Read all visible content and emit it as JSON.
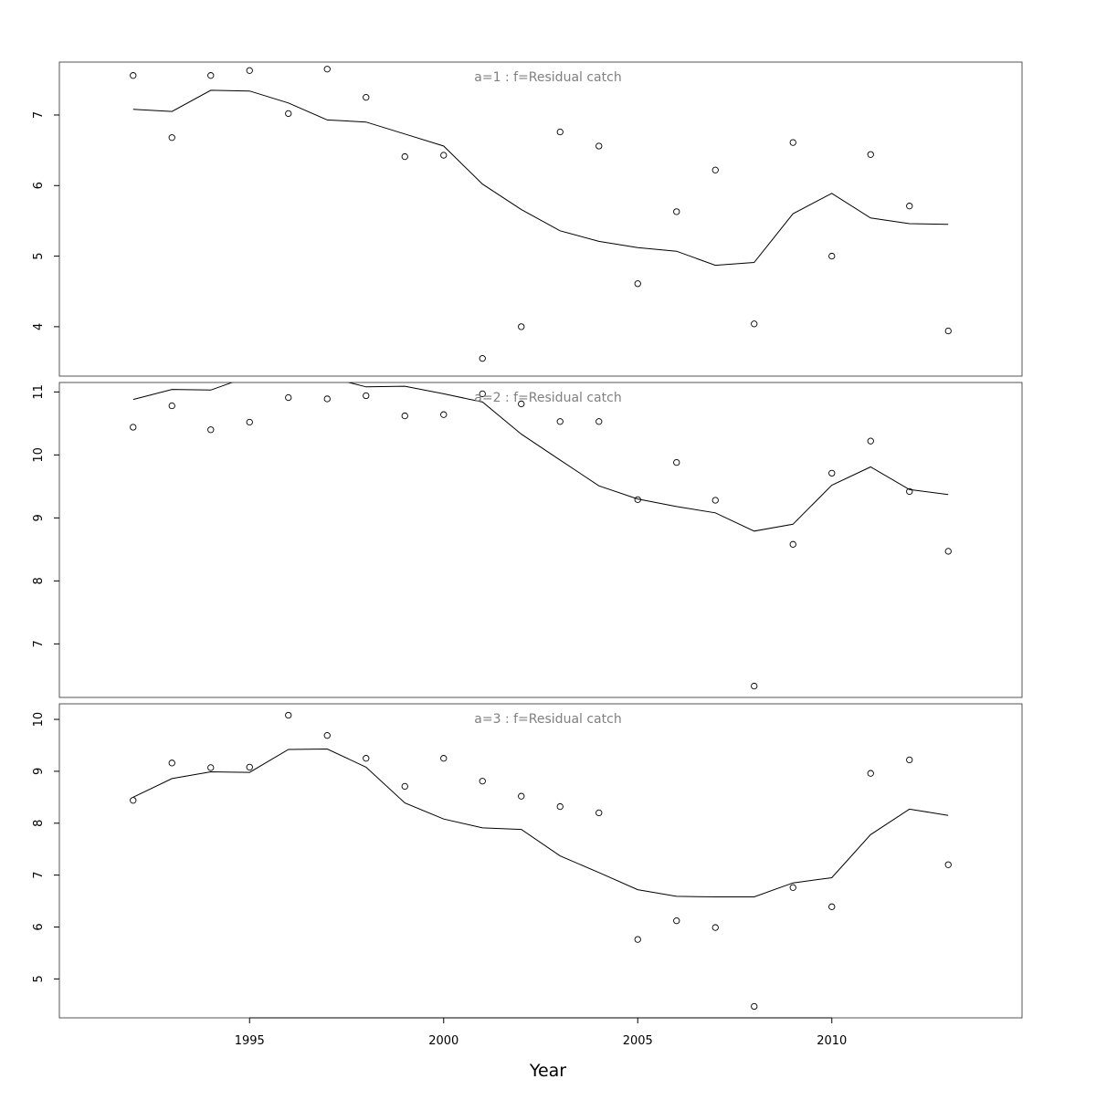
{
  "chart_data": {
    "type": "line",
    "xlabel": "Year",
    "xlim": [
      1990.1,
      2014.9
    ],
    "x_ticks": [
      1995,
      2000,
      2005,
      2010
    ],
    "x_tick_labels": [
      "1995",
      "2000",
      "2005",
      "2010"
    ],
    "marker": "open-circle",
    "line_color": "#000000",
    "panel_title_color": "#808080",
    "panels": [
      {
        "title": "a=1  :  f=Residual catch",
        "ylim": [
          3.3,
          7.75
        ],
        "y_ticks": [
          4,
          5,
          6,
          7
        ],
        "y_tick_labels": [
          "4",
          "5",
          "6",
          "7"
        ],
        "series": [
          {
            "kind": "points",
            "x": [
              1992,
              1993,
              1994,
              1995,
              1996,
              1997,
              1998,
              1999,
              2000,
              2001,
              2002,
              2003,
              2004,
              2005,
              2006,
              2007,
              2008,
              2009,
              2010,
              2011,
              2012,
              2013
            ],
            "y": [
              7.56,
              6.68,
              7.56,
              7.63,
              7.02,
              7.65,
              7.25,
              6.41,
              6.43,
              3.55,
              4.0,
              6.76,
              6.56,
              4.61,
              5.63,
              6.22,
              4.04,
              6.61,
              5.0,
              6.44,
              5.71,
              3.94
            ]
          },
          {
            "kind": "line",
            "x": [
              1992,
              1993,
              1994,
              1995,
              1996,
              1997,
              1998,
              1999,
              2000,
              2001,
              2002,
              2003,
              2004,
              2005,
              2006,
              2007,
              2008,
              2009,
              2010,
              2011,
              2012,
              2013
            ],
            "y": [
              7.08,
              7.05,
              7.35,
              7.34,
              7.17,
              6.93,
              6.9,
              6.73,
              6.56,
              6.02,
              5.66,
              5.36,
              5.21,
              5.12,
              5.07,
              4.87,
              4.91,
              5.6,
              5.89,
              5.54,
              5.46,
              5.45
            ]
          }
        ]
      },
      {
        "title": "a=2  :  f=Residual catch",
        "ylim": [
          6.15,
          11.15
        ],
        "y_ticks": [
          7,
          8,
          9,
          10,
          11
        ],
        "y_tick_labels": [
          "7",
          "8",
          "9",
          "10",
          "11"
        ],
        "series": [
          {
            "kind": "points",
            "x": [
              1992,
              1993,
              1994,
              1995,
              1996,
              1997,
              1998,
              1999,
              2000,
              2001,
              2002,
              2003,
              2004,
              2005,
              2006,
              2007,
              2008,
              2009,
              2010,
              2011,
              2012,
              2013
            ],
            "y": [
              10.44,
              10.78,
              10.4,
              10.52,
              10.91,
              10.89,
              10.94,
              10.62,
              10.64,
              10.97,
              10.81,
              10.53,
              10.53,
              9.29,
              9.88,
              9.28,
              6.33,
              8.58,
              9.71,
              10.22,
              9.42,
              8.47
            ]
          },
          {
            "kind": "line",
            "x": [
              1992,
              1993,
              1994,
              1995,
              1996,
              1997,
              1998,
              1999,
              2000,
              2001,
              2002,
              2003,
              2004,
              2005,
              2006,
              2007,
              2008,
              2009,
              2010,
              2011,
              2012,
              2013
            ],
            "y": [
              10.88,
              11.04,
              11.03,
              11.25,
              11.28,
              11.24,
              11.08,
              11.09,
              10.97,
              10.84,
              10.33,
              9.92,
              9.51,
              9.3,
              9.18,
              9.08,
              8.79,
              8.9,
              9.52,
              9.81,
              9.45,
              9.37
            ]
          }
        ]
      },
      {
        "title": "a=3  :  f=Residual catch",
        "ylim": [
          4.25,
          10.3
        ],
        "y_ticks": [
          5,
          6,
          7,
          8,
          9,
          10
        ],
        "y_tick_labels": [
          "5",
          "6",
          "7",
          "8",
          "9",
          "10"
        ],
        "series": [
          {
            "kind": "points",
            "x": [
              1992,
              1993,
              1994,
              1995,
              1996,
              1997,
              1998,
              1999,
              2000,
              2001,
              2002,
              2003,
              2004,
              2005,
              2006,
              2007,
              2008,
              2009,
              2010,
              2011,
              2012,
              2013
            ],
            "y": [
              8.44,
              9.16,
              9.07,
              9.08,
              10.08,
              9.69,
              9.25,
              8.71,
              9.25,
              8.81,
              8.52,
              8.32,
              8.2,
              5.76,
              6.12,
              5.99,
              4.47,
              6.76,
              6.39,
              8.96,
              9.22,
              7.2
            ]
          },
          {
            "kind": "line",
            "x": [
              1992,
              1993,
              1994,
              1995,
              1996,
              1997,
              1998,
              1999,
              2000,
              2001,
              2002,
              2003,
              2004,
              2005,
              2006,
              2007,
              2008,
              2009,
              2010,
              2011,
              2012,
              2013
            ],
            "y": [
              8.5,
              8.86,
              8.99,
              8.98,
              9.42,
              9.43,
              9.08,
              8.39,
              8.08,
              7.91,
              7.88,
              7.37,
              7.05,
              6.72,
              6.59,
              6.58,
              6.58,
              6.85,
              6.95,
              7.78,
              8.27,
              8.15
            ]
          }
        ]
      }
    ]
  }
}
